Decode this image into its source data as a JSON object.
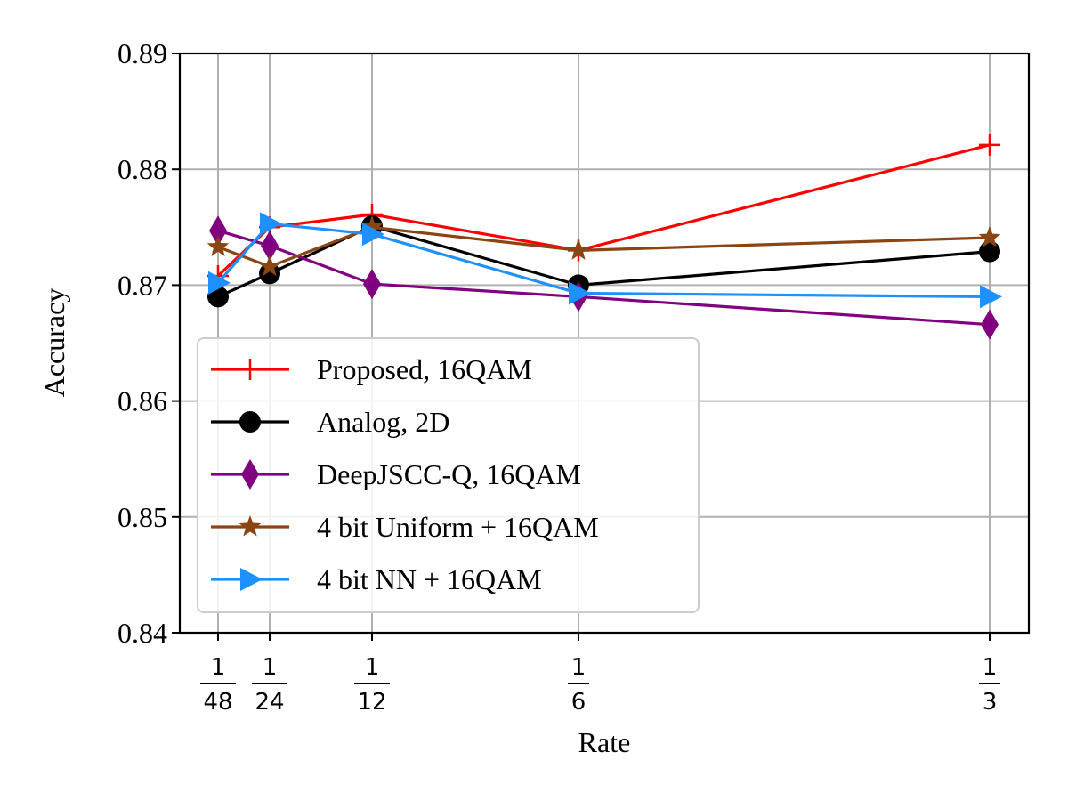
{
  "chart_data": {
    "type": "line",
    "title": "",
    "xlabel": "Rate",
    "ylabel": "Accuracy",
    "x": [
      0.020833,
      0.041667,
      0.083333,
      0.166667,
      0.333333
    ],
    "x_tick_labels": [
      {
        "num": "1",
        "den": "48"
      },
      {
        "num": "1",
        "den": "24"
      },
      {
        "num": "1",
        "den": "12"
      },
      {
        "num": "1",
        "den": "6"
      },
      {
        "num": "1",
        "den": "3"
      }
    ],
    "ylim": [
      0.84,
      0.89
    ],
    "y_ticks": [
      0.84,
      0.85,
      0.86,
      0.87,
      0.88,
      0.89
    ],
    "y_tick_labels": [
      "0.84",
      "0.85",
      "0.86",
      "0.87",
      "0.88",
      "0.89"
    ],
    "grid": true,
    "legend_position": "lower-left",
    "series": [
      {
        "name": "Proposed, 16QAM",
        "color": "#ff0000",
        "marker": "plus",
        "values": [
          0.8708,
          0.875,
          0.8761,
          0.873,
          0.8821
        ]
      },
      {
        "name": "Analog, 2D",
        "color": "#000000",
        "marker": "circle",
        "values": [
          0.869,
          0.871,
          0.8751,
          0.87,
          0.8729
        ]
      },
      {
        "name": "DeepJSCC-Q, 16QAM",
        "color": "#800080",
        "marker": "diamond",
        "values": [
          0.8747,
          0.8734,
          0.8701,
          0.869,
          0.8666
        ]
      },
      {
        "name": "4 bit Uniform + 16QAM",
        "color": "#8b4513",
        "marker": "star",
        "values": [
          0.8733,
          0.8716,
          0.875,
          0.873,
          0.8741
        ]
      },
      {
        "name": "4 bit NN + 16QAM",
        "color": "#1e90ff",
        "marker": "triangle-right",
        "values": [
          0.8702,
          0.8753,
          0.8744,
          0.8693,
          0.869
        ]
      }
    ]
  }
}
